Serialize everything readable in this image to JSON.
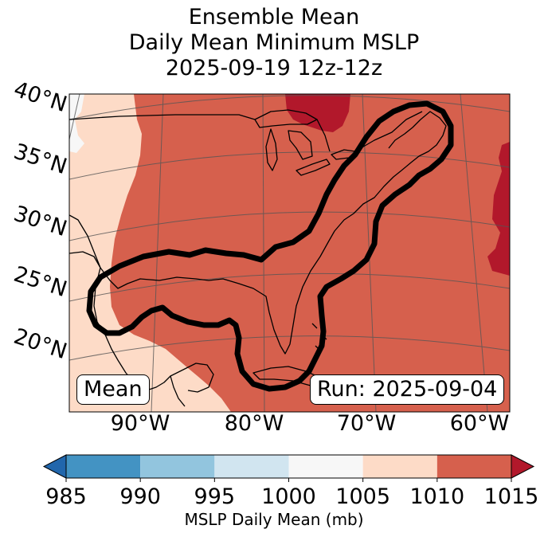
{
  "title": {
    "line1": "Ensemble Mean",
    "line2": "Daily Mean Minimum MSLP",
    "line3": "2025-09-19 12z-12z"
  },
  "map": {
    "lat_labels": [
      "40°N",
      "35°N",
      "30°N",
      "25°N",
      "20°N"
    ],
    "lon_labels": [
      "90°W",
      "80°W",
      "70°W",
      "60°W"
    ],
    "mean_box": "Mean",
    "run_box": "Run: 2025-09-04",
    "contour_description_color": "#000000"
  },
  "colorbar": {
    "label": "MSLP Daily Mean (mb)",
    "bins": [
      {
        "from": 985,
        "to": 990,
        "color": "#4393c3"
      },
      {
        "from": 990,
        "to": 995,
        "color": "#92c5de"
      },
      {
        "from": 995,
        "to": 1000,
        "color": "#d1e5f0"
      },
      {
        "from": 1000,
        "to": 1005,
        "color": "#f7f7f7"
      },
      {
        "from": 1005,
        "to": 1010,
        "color": "#fddbc7"
      },
      {
        "from": 1010,
        "to": 1015,
        "color": "#d6604d"
      }
    ],
    "under_color": "#2166ac",
    "over_color": "#b2182b",
    "tick_labels": [
      "985",
      "990",
      "995",
      "1000",
      "1005",
      "1010",
      "1015"
    ]
  }
}
